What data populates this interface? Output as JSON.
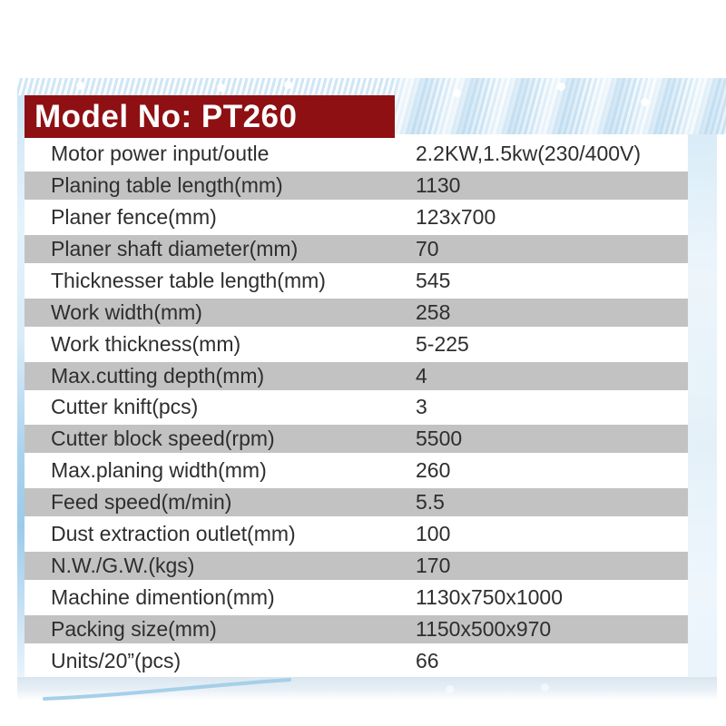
{
  "header": {
    "title": "Model No: PT260"
  },
  "specs": {
    "rows": [
      {
        "label": "Motor power input/outle",
        "value": "2.2KW,1.5kw(230/400V)"
      },
      {
        "label": "Planing table length(mm)",
        "value": "1130"
      },
      {
        "label": "Planer fence(mm)",
        "value": "123x700"
      },
      {
        "label": "Planer shaft diameter(mm)",
        "value": "70"
      },
      {
        "label": "Thicknesser table length(mm)",
        "value": "545"
      },
      {
        "label": "Work width(mm)",
        "value": "258"
      },
      {
        "label": "Work thickness(mm)",
        "value": "5-225"
      },
      {
        "label": "Max.cutting depth(mm)",
        "value": "4"
      },
      {
        "label": "Cutter knift(pcs)",
        "value": "3"
      },
      {
        "label": "Cutter block speed(rpm)",
        "value": "5500"
      },
      {
        "label": "Max.planing width(mm)",
        "value": "260"
      },
      {
        "label": "Feed speed(m/min)",
        "value": "5.5"
      },
      {
        "label": "Dust extraction outlet(mm)",
        "value": "100"
      },
      {
        "label": "N.W./G.W.(kgs)",
        "value": "170"
      },
      {
        "label": "Machine dimention(mm)",
        "value": "1130x750x1000"
      },
      {
        "label": "Packing size(mm)",
        "value": "1150x500x970"
      },
      {
        "label": "Units/20”(pcs)",
        "value": "66"
      }
    ]
  },
  "colors": {
    "header_bg": "#8e1013",
    "row_alt": "#c3c2c2",
    "stripe_blue": "#cfe6f5"
  }
}
